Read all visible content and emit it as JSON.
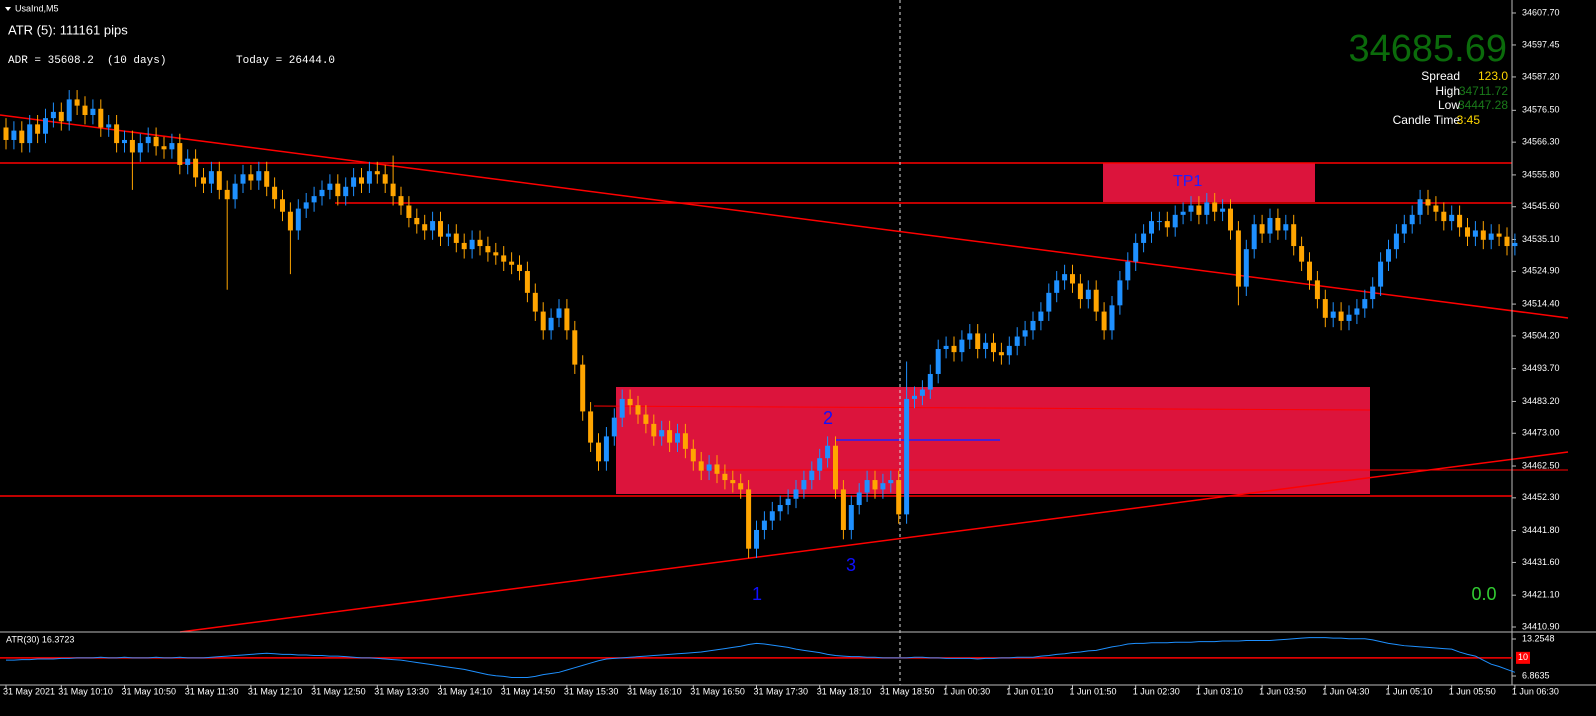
{
  "window_title": "UsaInd,M5",
  "indicators": {
    "atr_text": "ATR (5): 111161 pips",
    "adr": "ADR = 35608.2  (10 days)",
    "today": "Today = 26444.0"
  },
  "price_panel": {
    "price": "34685.69",
    "rows": [
      [
        "Spread",
        "123.0"
      ],
      [
        "High",
        "34711.72"
      ],
      [
        "Low",
        "34447.28"
      ],
      [
        "Candle Time",
        "3:45"
      ]
    ]
  },
  "annotations": {
    "tp1": "TP1",
    "wave_1": "1",
    "wave_2": "2",
    "wave_3": "3",
    "signal": "0.0"
  },
  "chart_data": [
    {
      "type": "candlestick",
      "categories": [
        "31 May 2021",
        null,
        null,
        null,
        null,
        null,
        null,
        "31 May 10:10",
        null,
        null,
        null,
        null,
        null,
        null,
        null,
        "31 May 10:50",
        null,
        null,
        null,
        null,
        null,
        null,
        null,
        "31 May 11:30",
        null,
        null,
        null,
        null,
        null,
        null,
        null,
        "31 May 12:10",
        null,
        null,
        null,
        null,
        null,
        null,
        null,
        "31 May 12:50",
        null,
        null,
        null,
        null,
        null,
        null,
        null,
        "31 May 13:30",
        null,
        null,
        null,
        null,
        null,
        null,
        null,
        "31 May 14:10",
        null,
        null,
        null,
        null,
        null,
        null,
        null,
        "31 May 14:50",
        null,
        null,
        null,
        null,
        null,
        null,
        null,
        "31 May 15:30",
        null,
        null,
        null,
        null,
        null,
        null,
        null,
        "31 May 16:10",
        null,
        null,
        null,
        null,
        null,
        null,
        null,
        "31 May 16:50",
        null,
        null,
        null,
        null,
        null,
        null,
        null,
        "31 May 17:30",
        null,
        null,
        null,
        null,
        null,
        null,
        null,
        "31 May 18:10",
        null,
        null,
        null,
        null,
        null,
        null,
        null,
        "31 May 18:50",
        null,
        null,
        null,
        null,
        null,
        null,
        null,
        "1 Jun 00:30",
        null,
        null,
        null,
        null,
        null,
        null,
        null,
        "1 Jun 01:10",
        null,
        null,
        null,
        null,
        null,
        null,
        null,
        "1 Jun 01:50",
        null,
        null,
        null,
        null,
        null,
        null,
        null,
        "1 Jun 02:30",
        null,
        null,
        null,
        null,
        null,
        null,
        null,
        "1 Jun 03:10",
        null,
        null,
        null,
        null,
        null,
        null,
        null,
        "1 Jun 03:50",
        null,
        null,
        null,
        null,
        null,
        null,
        null,
        "1 Jun 04:30",
        null,
        null,
        null,
        null,
        null,
        null,
        null,
        "1 Jun 05:10",
        null,
        null,
        null,
        null,
        null,
        null,
        null,
        "1 Jun 05:50",
        null,
        null,
        null,
        null,
        null,
        null,
        null,
        "1 Jun 06:30"
      ],
      "open": [
        34571,
        34567,
        34570,
        34566,
        34572,
        34569,
        34574,
        34576,
        34573,
        34580,
        34578,
        34575,
        34577,
        34571,
        34572,
        34566,
        34567,
        34563,
        34566,
        34568,
        34565,
        34564,
        34566,
        34559,
        34561,
        34555,
        34553,
        34557,
        34551,
        34548,
        34553,
        34556,
        34554,
        34557,
        34552,
        34548,
        34544,
        34538,
        34545,
        34547,
        34549,
        34551,
        34553,
        34549,
        34552,
        34555,
        34553,
        34557,
        34556,
        34553,
        34549,
        34546,
        34542,
        34540,
        34538,
        34541,
        34536,
        34537,
        34534,
        34532,
        34535,
        34533,
        34531,
        34530,
        34528,
        34527,
        34525,
        34518,
        34512,
        34506,
        34510,
        34513,
        34506,
        34495,
        34480,
        34470,
        34464,
        34472,
        34478,
        34484,
        34482,
        34479,
        34476,
        34472,
        34474,
        34470,
        34473,
        34468,
        34464,
        34461,
        34463,
        34460,
        34458,
        34457,
        34455,
        34436,
        34442,
        34445,
        34448,
        34450,
        34452,
        34455,
        34458,
        34461,
        34465,
        34469,
        34455,
        34442,
        34450,
        34454,
        34458,
        34455,
        34457,
        34458,
        34447,
        34484,
        34485,
        34487,
        34492,
        34500,
        34501,
        34499,
        34503,
        34505,
        34500,
        34502,
        34499,
        34498,
        34501,
        34504,
        34506,
        34509,
        34512,
        34518,
        34522,
        34524,
        34521,
        34516,
        34519,
        34512,
        34506,
        34514,
        34522,
        34528,
        34534,
        34537,
        34541,
        34541,
        34539,
        34543,
        34544,
        34546,
        34543,
        34547,
        34544,
        34545,
        34538,
        34520,
        34532,
        34540,
        34537,
        34542,
        34538,
        34540,
        34533,
        34528,
        34522,
        34516,
        34510,
        34512,
        34509,
        34511,
        34513,
        34516,
        34520,
        34528,
        34532,
        34537,
        34540,
        34543,
        34548,
        34546,
        34544,
        34541,
        34543,
        34539,
        34536,
        34538,
        34535,
        34537,
        34536,
        34533
      ],
      "high": [
        34574,
        34573,
        34573,
        34575,
        34575,
        34577,
        34579,
        34579,
        34583,
        34583,
        34581,
        34580,
        34580,
        34575,
        34575,
        34570,
        34570,
        34569,
        34571,
        34571,
        34568,
        34569,
        34569,
        34564,
        34564,
        34558,
        34560,
        34560,
        34554,
        34556,
        34559,
        34559,
        34560,
        34560,
        34555,
        34551,
        34547,
        34548,
        34550,
        34552,
        34554,
        34556,
        34556,
        34555,
        34558,
        34558,
        34560,
        34560,
        34559,
        34562,
        34552,
        34549,
        34545,
        34543,
        34544,
        34544,
        34540,
        34540,
        34537,
        34538,
        34538,
        34536,
        34534,
        34533,
        34531,
        34530,
        34528,
        34521,
        34515,
        34513,
        34516,
        34516,
        34509,
        34498,
        34483,
        34473,
        34475,
        34481,
        34487,
        34487,
        34485,
        34482,
        34479,
        34477,
        34477,
        34476,
        34476,
        34471,
        34467,
        34466,
        34466,
        34463,
        34461,
        34460,
        34458,
        34445,
        34448,
        34451,
        34453,
        34455,
        34458,
        34461,
        34464,
        34468,
        34472,
        34472,
        34458,
        34453,
        34457,
        34461,
        34461,
        34460,
        34461,
        34461,
        34496,
        34488,
        34490,
        34495,
        34503,
        34504,
        34504,
        34506,
        34508,
        34508,
        34505,
        34505,
        34502,
        34504,
        34507,
        34509,
        34512,
        34515,
        34521,
        34525,
        34527,
        34527,
        34524,
        34522,
        34522,
        34515,
        34517,
        34525,
        34531,
        34537,
        34540,
        34544,
        34544,
        34544,
        34546,
        34547,
        34549,
        34549,
        34550,
        34550,
        34548,
        34548,
        34541,
        34535,
        34543,
        34543,
        34545,
        34545,
        34543,
        34543,
        34536,
        34531,
        34525,
        34519,
        34515,
        34515,
        34514,
        34516,
        34519,
        34523,
        34531,
        34535,
        34540,
        34543,
        34546,
        34551,
        34551,
        34549,
        34547,
        34546,
        34546,
        34542,
        34541,
        34541,
        34540,
        34540,
        34539,
        34537
      ],
      "low": [
        34564,
        34564,
        34563,
        34563,
        34566,
        34566,
        34571,
        34570,
        34570,
        34575,
        34572,
        34572,
        34568,
        34568,
        34563,
        34563,
        34551,
        34560,
        34563,
        34562,
        34561,
        34561,
        34556,
        34556,
        34552,
        34550,
        34550,
        34548,
        34519,
        34545,
        34550,
        34551,
        34551,
        34549,
        34545,
        34541,
        34524,
        34535,
        34542,
        34544,
        34546,
        34548,
        34546,
        34546,
        34549,
        34550,
        34550,
        34553,
        34550,
        34546,
        34543,
        34539,
        34537,
        34535,
        34535,
        34533,
        34533,
        34531,
        34529,
        34529,
        34530,
        34528,
        34527,
        34525,
        34524,
        34522,
        34515,
        34509,
        34503,
        34503,
        34507,
        34503,
        34492,
        34477,
        34467,
        34461,
        34461,
        34469,
        34475,
        34479,
        34476,
        34473,
        34469,
        34469,
        34467,
        34467,
        34465,
        34461,
        34458,
        34458,
        34457,
        34455,
        34454,
        34452,
        34433,
        34433,
        34439,
        34442,
        34445,
        34447,
        34449,
        34452,
        34455,
        34458,
        34462,
        34452,
        34439,
        34439,
        34447,
        34451,
        34452,
        34452,
        34454,
        34444,
        34444,
        34481,
        34482,
        34484,
        34489,
        34497,
        34496,
        34496,
        34500,
        34497,
        34497,
        34496,
        34495,
        34495,
        34498,
        34501,
        34503,
        34506,
        34509,
        34515,
        34519,
        34518,
        34513,
        34513,
        34509,
        34503,
        34503,
        34511,
        34519,
        34525,
        34531,
        34534,
        34538,
        34536,
        34536,
        34540,
        34541,
        34540,
        34540,
        34541,
        34541,
        34535,
        34514,
        34517,
        34529,
        34534,
        34534,
        34535,
        34535,
        34530,
        34525,
        34519,
        34513,
        34507,
        34507,
        34506,
        34506,
        34508,
        34510,
        34513,
        34517,
        34525,
        34529,
        34534,
        34537,
        34540,
        34543,
        34541,
        34538,
        34538,
        34536,
        34533,
        34533,
        34532,
        34532,
        34533,
        34530,
        34530
      ],
      "close": [
        34567,
        34570,
        34566,
        34572,
        34569,
        34574,
        34576,
        34573,
        34580,
        34578,
        34575,
        34577,
        34571,
        34572,
        34566,
        34567,
        34563,
        34566,
        34568,
        34565,
        34564,
        34566,
        34559,
        34561,
        34555,
        34553,
        34557,
        34551,
        34548,
        34553,
        34556,
        34554,
        34557,
        34552,
        34548,
        34544,
        34538,
        34545,
        34547,
        34549,
        34551,
        34553,
        34549,
        34552,
        34555,
        34553,
        34557,
        34556,
        34553,
        34549,
        34546,
        34542,
        34540,
        34538,
        34541,
        34536,
        34537,
        34534,
        34532,
        34535,
        34533,
        34531,
        34530,
        34528,
        34527,
        34525,
        34518,
        34512,
        34506,
        34510,
        34513,
        34506,
        34495,
        34480,
        34470,
        34464,
        34472,
        34478,
        34484,
        34482,
        34479,
        34476,
        34472,
        34474,
        34470,
        34473,
        34468,
        34464,
        34461,
        34463,
        34460,
        34458,
        34457,
        34455,
        34436,
        34442,
        34445,
        34448,
        34450,
        34452,
        34455,
        34458,
        34461,
        34465,
        34469,
        34455,
        34442,
        34450,
        34454,
        34458,
        34455,
        34457,
        34458,
        34447,
        34484,
        34485,
        34487,
        34492,
        34500,
        34501,
        34499,
        34503,
        34505,
        34500,
        34502,
        34499,
        34498,
        34501,
        34504,
        34506,
        34509,
        34512,
        34518,
        34522,
        34524,
        34521,
        34516,
        34519,
        34512,
        34506,
        34514,
        34522,
        34528,
        34534,
        34537,
        34541,
        34541,
        34539,
        34543,
        34544,
        34546,
        34543,
        34547,
        34544,
        34545,
        34538,
        34520,
        34532,
        34540,
        34537,
        34542,
        34538,
        34540,
        34533,
        34528,
        34522,
        34516,
        34510,
        34512,
        34509,
        34511,
        34513,
        34516,
        34520,
        34528,
        34532,
        34537,
        34540,
        34543,
        34548,
        34546,
        34544,
        34541,
        34543,
        34539,
        34536,
        34538,
        34535,
        34537,
        34536,
        34533,
        34534
      ],
      "up_color": "#1e90ff",
      "down_color": "#ffa500",
      "ylim": [
        34409.3,
        34610.9
      ],
      "yticks": [
        {
          "value": 34607.7,
          "label": "34607.70"
        },
        34597.45,
        {
          "value": 34587.2,
          "label": "34587.20"
        },
        {
          "value": 34576.5,
          "label": "34576.50"
        },
        {
          "value": 34566.3,
          "label": "34566.30"
        },
        {
          "value": 34555.8,
          "label": "34555.80"
        },
        {
          "value": 34545.6,
          "label": "34545.60"
        },
        {
          "value": 34535.1,
          "label": "34535.10"
        },
        {
          "value": 34524.9,
          "label": "34524.90"
        },
        {
          "value": 34514.4,
          "label": "34514.40"
        },
        {
          "value": 34504.2,
          "label": "34504.20"
        },
        {
          "value": 34493.7,
          "label": "34493.70"
        },
        {
          "value": 34483.2,
          "label": "34483.20"
        },
        {
          "value": 34473,
          "label": "34473.00"
        },
        {
          "value": 34462.5,
          "label": "34462.50"
        },
        {
          "value": 34452.3,
          "label": "34452.30"
        },
        {
          "value": 34441.8,
          "label": "34441.80"
        },
        {
          "value": 34431.6,
          "label": "34431.60"
        },
        {
          "value": 34421.1,
          "label": "34421.10"
        },
        {
          "value": 34410.9,
          "label": "34410.90"
        }
      ],
      "hlines": [
        34559.6,
        34546.8,
        34452.9
      ],
      "hline_color": "#ff0000",
      "grid": false
    },
    {
      "type": "line",
      "title": "ATR(30) 16.3723",
      "color": "#1e90ff",
      "values": [
        9.6,
        9.6,
        9.7,
        9.7,
        9.8,
        9.8,
        9.8,
        9.9,
        9.9,
        10.0,
        10.0,
        10.0,
        10.1,
        10.0,
        10.0,
        10.1,
        10.0,
        10.0,
        10.0,
        10.1,
        10.0,
        10.0,
        10.1,
        10.0,
        10.0,
        10.0,
        10.1,
        10.2,
        10.3,
        10.4,
        10.5,
        10.6,
        10.7,
        10.8,
        10.7,
        10.6,
        10.6,
        10.5,
        10.5,
        10.4,
        10.4,
        10.3,
        10.3,
        10.2,
        10.1,
        10.0,
        10.0,
        9.9,
        9.8,
        9.7,
        9.6,
        9.4,
        9.2,
        9.0,
        8.8,
        8.6,
        8.4,
        8.2,
        8.0,
        7.7,
        7.4,
        7.1,
        6.9,
        6.8,
        6.6,
        6.6,
        6.6,
        6.8,
        7.1,
        7.3,
        7.5,
        7.9,
        8.3,
        8.7,
        9.1,
        9.5,
        9.8,
        9.9,
        10.0,
        10.1,
        10.2,
        10.3,
        10.4,
        10.5,
        10.6,
        10.7,
        10.8,
        10.9,
        11.0,
        11.2,
        11.4,
        11.6,
        11.8,
        12.0,
        12.3,
        12.5,
        12.4,
        12.2,
        12.0,
        11.8,
        11.5,
        11.3,
        11.1,
        10.9,
        10.6,
        10.4,
        10.3,
        10.2,
        10.2,
        10.1,
        10.1,
        10.0,
        10.0,
        10.0,
        10.0,
        10.1,
        10.1,
        10.0,
        10.0,
        9.9,
        9.9,
        9.9,
        9.9,
        9.8,
        9.9,
        9.9,
        10.0,
        10.0,
        10.1,
        10.1,
        10.1,
        10.3,
        10.4,
        10.6,
        10.7,
        10.9,
        11.0,
        11.2,
        11.3,
        11.6,
        11.9,
        12.1,
        12.4,
        12.5,
        12.5,
        12.6,
        12.6,
        12.6,
        12.7,
        12.7,
        12.7,
        12.8,
        12.8,
        12.8,
        12.9,
        12.9,
        12.9,
        13.0,
        13.0,
        13.0,
        13.0,
        13.1,
        13.2,
        13.3,
        13.4,
        13.5,
        13.5,
        13.5,
        13.4,
        13.4,
        13.3,
        13.3,
        13.3,
        13.1,
        12.8,
        12.5,
        12.3,
        12.1,
        12.0,
        11.9,
        11.8,
        11.7,
        11.6,
        11.5,
        11.0,
        10.6,
        10.3,
        9.6,
        8.9,
        8.5,
        8.0,
        7.5
      ],
      "ylim": [
        5.48,
        14.12
      ],
      "yticks": [
        13.2548,
        6.8635
      ],
      "level": 10,
      "level_color": "#ff0000"
    }
  ]
}
